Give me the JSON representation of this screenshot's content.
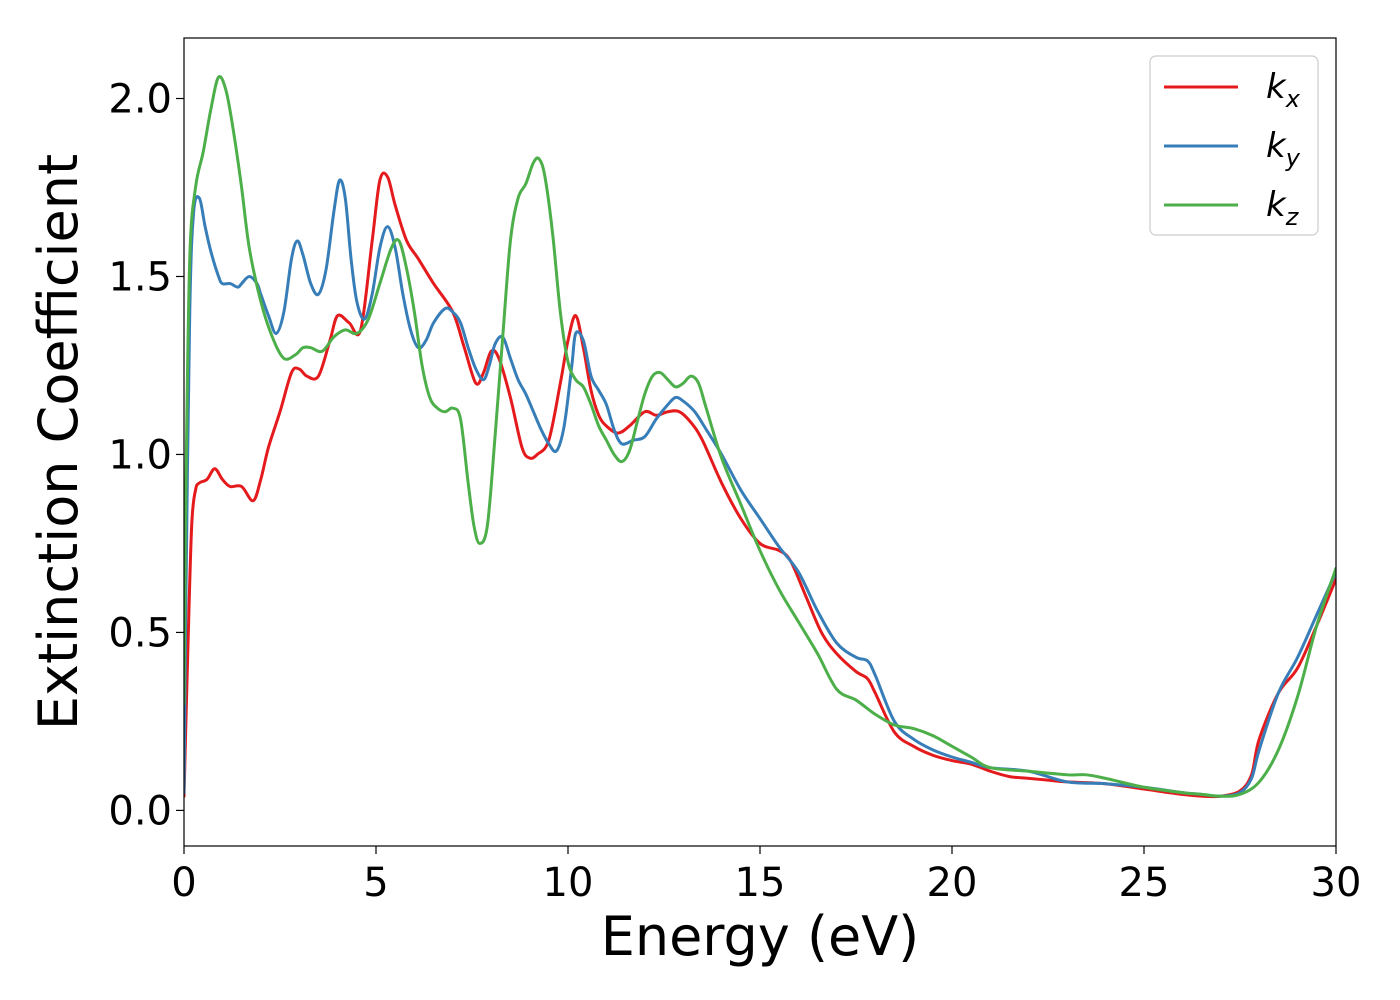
{
  "chart_data": {
    "type": "line",
    "xlabel": "Energy (eV)",
    "ylabel": "Extinction Coefficient",
    "xlim": [
      0,
      30
    ],
    "ylim": [
      -0.1,
      2.17
    ],
    "xticks": [
      "0",
      "5",
      "10",
      "15",
      "20",
      "25",
      "30"
    ],
    "yticks": [
      "0.0",
      "0.5",
      "1.0",
      "1.5",
      "2.0"
    ],
    "grid": false,
    "legend_position": "top-right",
    "series": [
      {
        "name": "k",
        "subscript": "x",
        "color": "#e41a1c",
        "x": [
          0,
          0.1,
          0.2,
          0.3,
          0.4,
          0.6,
          0.8,
          1.0,
          1.2,
          1.5,
          1.8,
          2.0,
          2.2,
          2.5,
          2.8,
          3.0,
          3.2,
          3.5,
          3.8,
          4.0,
          4.3,
          4.6,
          4.9,
          5.1,
          5.3,
          5.5,
          5.8,
          6.1,
          6.5,
          7.0,
          7.3,
          7.6,
          7.8,
          8.0,
          8.2,
          8.5,
          8.8,
          9.0,
          9.2,
          9.5,
          9.8,
          10.0,
          10.2,
          10.4,
          10.6,
          10.8,
          11.0,
          11.3,
          11.6,
          12.0,
          12.3,
          12.6,
          12.9,
          13.2,
          13.5,
          14.0,
          14.5,
          15.0,
          15.5,
          15.8,
          16.2,
          16.6,
          17.0,
          17.5,
          17.8,
          18.0,
          18.5,
          19.0,
          19.5,
          20.0,
          20.5,
          21.0,
          21.5,
          22.0,
          22.5,
          23.0,
          24.0,
          25.0,
          26.0,
          26.5,
          27.0,
          27.5,
          27.8,
          28.0,
          28.5,
          29.0,
          29.5,
          30.0
        ],
        "y": [
          0.04,
          0.45,
          0.8,
          0.9,
          0.92,
          0.93,
          0.96,
          0.93,
          0.91,
          0.91,
          0.87,
          0.93,
          1.02,
          1.12,
          1.23,
          1.24,
          1.22,
          1.22,
          1.32,
          1.39,
          1.37,
          1.35,
          1.6,
          1.77,
          1.78,
          1.7,
          1.6,
          1.55,
          1.48,
          1.4,
          1.3,
          1.2,
          1.23,
          1.29,
          1.27,
          1.16,
          1.02,
          0.99,
          1.0,
          1.04,
          1.2,
          1.32,
          1.39,
          1.3,
          1.18,
          1.11,
          1.08,
          1.06,
          1.08,
          1.12,
          1.11,
          1.12,
          1.12,
          1.09,
          1.04,
          0.92,
          0.82,
          0.75,
          0.73,
          0.7,
          0.6,
          0.5,
          0.44,
          0.39,
          0.37,
          0.33,
          0.22,
          0.18,
          0.155,
          0.14,
          0.13,
          0.11,
          0.095,
          0.09,
          0.085,
          0.08,
          0.075,
          0.06,
          0.045,
          0.04,
          0.04,
          0.055,
          0.1,
          0.2,
          0.33,
          0.4,
          0.52,
          0.65
        ]
      },
      {
        "name": "k",
        "subscript": "y",
        "color": "#377eb8",
        "x": [
          0,
          0.05,
          0.15,
          0.25,
          0.4,
          0.55,
          0.7,
          0.9,
          1.0,
          1.2,
          1.4,
          1.5,
          1.7,
          1.9,
          2.0,
          2.2,
          2.4,
          2.6,
          2.8,
          2.95,
          3.1,
          3.3,
          3.5,
          3.7,
          3.9,
          4.05,
          4.2,
          4.35,
          4.5,
          4.7,
          4.9,
          5.1,
          5.3,
          5.5,
          5.7,
          5.9,
          6.1,
          6.3,
          6.5,
          6.8,
          7.0,
          7.2,
          7.4,
          7.6,
          7.8,
          7.95,
          8.1,
          8.3,
          8.5,
          8.7,
          8.9,
          9.1,
          9.3,
          9.5,
          9.7,
          9.9,
          10.1,
          10.2,
          10.4,
          10.6,
          10.8,
          11.0,
          11.2,
          11.4,
          11.7,
          12.0,
          12.3,
          12.6,
          12.8,
          13.0,
          13.3,
          13.6,
          14.0,
          14.5,
          15.0,
          15.5,
          16.0,
          16.5,
          17.0,
          17.5,
          17.8,
          18.0,
          18.5,
          19.0,
          19.5,
          20.0,
          20.5,
          21.0,
          22.0,
          23.0,
          24.0,
          25.0,
          26.0,
          26.5,
          27.0,
          27.5,
          27.8,
          28.0,
          28.5,
          29.0,
          29.5,
          30.0
        ],
        "y": [
          0.05,
          0.6,
          1.4,
          1.68,
          1.72,
          1.64,
          1.57,
          1.5,
          1.48,
          1.48,
          1.47,
          1.48,
          1.5,
          1.48,
          1.45,
          1.39,
          1.34,
          1.4,
          1.55,
          1.6,
          1.56,
          1.48,
          1.45,
          1.52,
          1.68,
          1.77,
          1.72,
          1.55,
          1.43,
          1.38,
          1.45,
          1.58,
          1.64,
          1.58,
          1.45,
          1.35,
          1.3,
          1.32,
          1.37,
          1.41,
          1.4,
          1.37,
          1.3,
          1.24,
          1.21,
          1.25,
          1.31,
          1.33,
          1.27,
          1.21,
          1.17,
          1.12,
          1.07,
          1.03,
          1.01,
          1.08,
          1.25,
          1.34,
          1.32,
          1.22,
          1.18,
          1.14,
          1.07,
          1.03,
          1.04,
          1.05,
          1.1,
          1.14,
          1.16,
          1.15,
          1.12,
          1.07,
          1.0,
          0.9,
          0.82,
          0.74,
          0.67,
          0.56,
          0.47,
          0.43,
          0.42,
          0.38,
          0.25,
          0.2,
          0.17,
          0.15,
          0.135,
          0.12,
          0.11,
          0.08,
          0.075,
          0.065,
          0.05,
          0.045,
          0.04,
          0.05,
          0.09,
          0.17,
          0.33,
          0.43,
          0.55,
          0.67
        ]
      },
      {
        "name": "k",
        "subscript": "z",
        "color": "#4daf4a",
        "x": [
          0,
          0.05,
          0.15,
          0.3,
          0.5,
          0.7,
          0.9,
          1.1,
          1.3,
          1.5,
          1.7,
          2.0,
          2.3,
          2.6,
          2.9,
          3.1,
          3.3,
          3.6,
          3.9,
          4.2,
          4.5,
          4.8,
          5.1,
          5.4,
          5.6,
          5.8,
          6.0,
          6.2,
          6.4,
          6.6,
          6.8,
          7.0,
          7.2,
          7.4,
          7.55,
          7.7,
          7.9,
          8.1,
          8.3,
          8.5,
          8.7,
          8.9,
          9.1,
          9.25,
          9.4,
          9.6,
          9.8,
          10.0,
          10.2,
          10.4,
          10.6,
          10.8,
          11.0,
          11.2,
          11.4,
          11.6,
          11.8,
          12.0,
          12.2,
          12.4,
          12.6,
          12.8,
          13.0,
          13.2,
          13.4,
          13.6,
          14.0,
          14.5,
          15.0,
          15.5,
          16.0,
          16.5,
          17.0,
          17.5,
          18.0,
          18.5,
          19.0,
          19.5,
          20.0,
          20.5,
          21.0,
          22.0,
          23.0,
          23.5,
          24.0,
          25.0,
          26.0,
          26.5,
          27.0,
          27.5,
          28.0,
          28.5,
          29.0,
          29.5,
          30.0
        ],
        "y": [
          0.3,
          0.9,
          1.55,
          1.75,
          1.85,
          1.97,
          2.06,
          2.02,
          1.9,
          1.75,
          1.58,
          1.43,
          1.33,
          1.27,
          1.28,
          1.3,
          1.3,
          1.29,
          1.33,
          1.35,
          1.34,
          1.38,
          1.48,
          1.58,
          1.6,
          1.52,
          1.4,
          1.25,
          1.16,
          1.13,
          1.12,
          1.13,
          1.1,
          0.92,
          0.8,
          0.75,
          0.8,
          1.05,
          1.33,
          1.6,
          1.72,
          1.76,
          1.82,
          1.83,
          1.78,
          1.62,
          1.4,
          1.26,
          1.21,
          1.19,
          1.14,
          1.08,
          1.04,
          1.0,
          0.98,
          1.01,
          1.09,
          1.17,
          1.22,
          1.23,
          1.21,
          1.19,
          1.2,
          1.22,
          1.2,
          1.13,
          0.99,
          0.86,
          0.73,
          0.62,
          0.53,
          0.44,
          0.34,
          0.31,
          0.27,
          0.24,
          0.23,
          0.21,
          0.18,
          0.15,
          0.12,
          0.11,
          0.1,
          0.1,
          0.09,
          0.065,
          0.05,
          0.045,
          0.04,
          0.045,
          0.08,
          0.17,
          0.32,
          0.52,
          0.68
        ]
      }
    ]
  }
}
